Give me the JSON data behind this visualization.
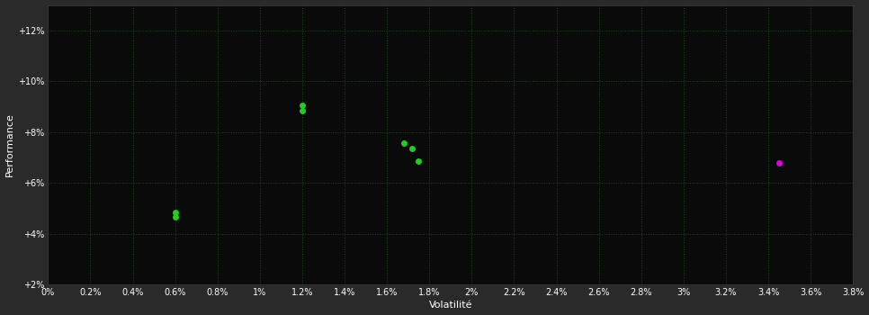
{
  "background_color": "#2a2a2a",
  "plot_bg_color": "#0a0a0a",
  "grid_color": "#1a4a1a",
  "text_color": "#ffffff",
  "xlabel": "Volatilité",
  "ylabel": "Performance",
  "xlim": [
    0.0,
    0.038
  ],
  "ylim": [
    0.02,
    0.13
  ],
  "xticks": [
    0.0,
    0.002,
    0.004,
    0.006,
    0.008,
    0.01,
    0.012,
    0.014,
    0.016,
    0.018,
    0.02,
    0.022,
    0.024,
    0.026,
    0.028,
    0.03,
    0.032,
    0.034,
    0.036,
    0.038
  ],
  "yticks": [
    0.02,
    0.04,
    0.06,
    0.08,
    0.1,
    0.12
  ],
  "ytick_labels": [
    "+2%",
    "+4%",
    "+6%",
    "+8%",
    "+10%",
    "+12%"
  ],
  "xtick_labels": [
    "0%",
    "0.2%",
    "0.4%",
    "0.6%",
    "0.8%",
    "1%",
    "1.2%",
    "1.4%",
    "1.6%",
    "1.8%",
    "2%",
    "2.2%",
    "2.4%",
    "2.6%",
    "2.8%",
    "3%",
    "3.2%",
    "3.4%",
    "3.6%",
    "3.8%"
  ],
  "green_points": [
    [
      0.006,
      0.0485
    ],
    [
      0.006,
      0.0465
    ],
    [
      0.012,
      0.0905
    ],
    [
      0.012,
      0.0885
    ],
    [
      0.0168,
      0.0755
    ],
    [
      0.0172,
      0.0735
    ],
    [
      0.0175,
      0.0685
    ]
  ],
  "magenta_points": [
    [
      0.0345,
      0.068
    ]
  ],
  "green_color": "#22cc22",
  "magenta_color": "#dd00dd",
  "marker_size": 5
}
